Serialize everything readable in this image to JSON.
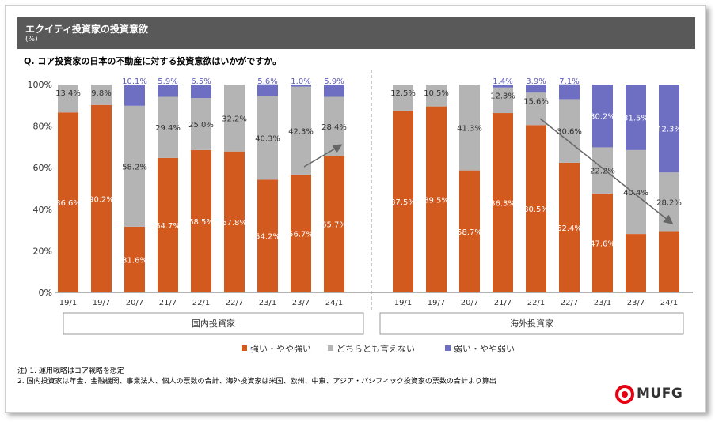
{
  "header": {
    "title": "エクイティ投資家の投資意欲",
    "unit": "(%)"
  },
  "question": "Q.  コア投資家の日本の不動産に対する投資意欲はいかがですか。",
  "chart_data": {
    "type": "stacked-bar",
    "ylim": [
      0,
      100
    ],
    "yticks": [
      "0%",
      "20%",
      "40%",
      "60%",
      "80%",
      "100%"
    ],
    "series_names": [
      "強い・やや強い",
      "どちらとも言えない",
      "弱い・やや弱い"
    ],
    "colors": {
      "strong": "#D35A1F",
      "neutral": "#B4B4B4",
      "weak": "#6E6EC2"
    },
    "groups": [
      {
        "name": "国内投資家",
        "categories": [
          "19/1",
          "19/7",
          "20/7",
          "21/7",
          "22/1",
          "22/7",
          "23/1",
          "23/7",
          "24/1"
        ],
        "strong": [
          86.6,
          90.2,
          31.6,
          64.7,
          68.5,
          67.8,
          54.2,
          56.7,
          65.7
        ],
        "neutral": [
          13.4,
          9.8,
          58.2,
          29.4,
          25.0,
          32.2,
          40.3,
          42.3,
          28.4
        ],
        "weak": [
          0,
          0,
          10.1,
          5.9,
          6.5,
          0,
          5.6,
          1.0,
          5.9
        ],
        "strong_labels": [
          "86.6%",
          "90.2%",
          "31.6%",
          "64.7%",
          "68.5%",
          "67.8%",
          "54.2%",
          "56.7%",
          "65.7%"
        ],
        "neutral_labels": [
          "13.4%",
          "9.8%",
          "58.2%",
          "29.4%",
          "25.0%",
          "32.2%",
          "40.3%",
          "42.3%",
          "28.4%"
        ],
        "weak_labels": [
          "",
          "",
          "10.1%",
          "5.9%",
          "6.5%",
          "",
          "5.6%",
          "1.0%",
          "5.9%"
        ]
      },
      {
        "name": "海外投資家",
        "categories": [
          "19/1",
          "19/7",
          "20/7",
          "21/7",
          "22/1",
          "22/7",
          "23/1",
          "23/7",
          "24/1"
        ],
        "strong": [
          87.5,
          89.5,
          58.7,
          86.3,
          80.5,
          62.4,
          47.6,
          28.1,
          29.5
        ],
        "neutral": [
          12.5,
          10.5,
          41.3,
          12.3,
          15.6,
          30.6,
          22.2,
          40.4,
          28.2
        ],
        "weak": [
          0,
          0,
          0,
          1.4,
          3.9,
          7.1,
          30.2,
          31.5,
          42.3
        ],
        "strong_labels": [
          "87.5%",
          "89.5%",
          "58.7%",
          "86.3%",
          "80.5%",
          "62.4%",
          "47.6%",
          "",
          ""
        ],
        "neutral_labels": [
          "12.5%",
          "10.5%",
          "41.3%",
          "12.3%",
          "15.6%",
          "30.6%",
          "22.2%",
          "40.4%",
          "28.2%"
        ],
        "weak_labels": [
          "",
          "",
          "",
          "1.4%",
          "3.9%",
          "7.1%",
          "30.2%",
          "31.5%",
          "42.3%"
        ]
      }
    ],
    "legend": [
      "強い・やや強い",
      "どちらとも言えない",
      "弱い・やや弱い"
    ]
  },
  "notes": [
    "注) 1.  運用戦略はコア戦略を想定",
    "      2.  国内投資家は年金、金融機関、事業法人、個人の票数の合計、海外投資家は米国、欧州、中東、アジア・パシフィック投資家の票数の合計より算出"
  ],
  "logo": {
    "text": "MUFG",
    "color": "#E60012"
  }
}
